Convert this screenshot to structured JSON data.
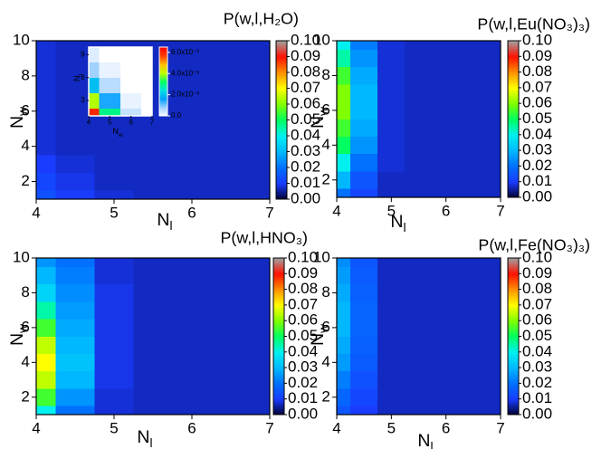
{
  "chart_data": [
    {
      "type": "heatmap",
      "title": "P(w,l,H₂O)",
      "xlabel": [
        "N",
        "l"
      ],
      "ylabel": [
        "N",
        "w"
      ],
      "x": [
        4,
        4.5,
        5,
        5.5,
        6,
        6.5,
        7
      ],
      "y": [
        1,
        2,
        3,
        4,
        5,
        6,
        7,
        8,
        9,
        10
      ],
      "z": [
        [
          0.014,
          0.01,
          0.008,
          0.007,
          0.007,
          0.007,
          0.007
        ],
        [
          0.012,
          0.009,
          0.007,
          0.007,
          0.007,
          0.007,
          0.007
        ],
        [
          0.01,
          0.008,
          0.007,
          0.007,
          0.007,
          0.007,
          0.007
        ],
        [
          0.008,
          0.007,
          0.007,
          0.007,
          0.007,
          0.007,
          0.007
        ],
        [
          0.008,
          0.007,
          0.007,
          0.007,
          0.007,
          0.007,
          0.007
        ],
        [
          0.008,
          0.007,
          0.007,
          0.007,
          0.007,
          0.007,
          0.007
        ],
        [
          0.008,
          0.007,
          0.007,
          0.007,
          0.007,
          0.007,
          0.007
        ],
        [
          0.008,
          0.007,
          0.007,
          0.007,
          0.007,
          0.007,
          0.007
        ],
        [
          0.008,
          0.007,
          0.007,
          0.007,
          0.007,
          0.007,
          0.007
        ],
        [
          0.008,
          0.007,
          0.007,
          0.007,
          0.007,
          0.007,
          0.007
        ]
      ],
      "xlim": [
        4,
        7
      ],
      "ylim": [
        1,
        10
      ],
      "xticks": [
        4,
        5,
        6,
        7
      ],
      "yticks": [
        2,
        4,
        6,
        8,
        10
      ],
      "clim": [
        0,
        0.1
      ],
      "cticks": [
        {
          "value": 0,
          "label": "0.00"
        },
        {
          "value": 0.01,
          "label": "0.01"
        },
        {
          "value": 0.02,
          "label": "0.02"
        },
        {
          "value": 0.03,
          "label": "0.03"
        },
        {
          "value": 0.04,
          "label": "0.04"
        },
        {
          "value": 0.05,
          "label": "0.05"
        },
        {
          "value": 0.06,
          "label": "0.06"
        },
        {
          "value": 0.07,
          "label": "0.07"
        },
        {
          "value": 0.08,
          "label": "0.08"
        },
        {
          "value": 0.09,
          "label": "0.09"
        },
        {
          "value": 0.1,
          "label": "0.10"
        }
      ],
      "colormap": [
        "#000030",
        "#1a3cff",
        "#0070ff",
        "#00b8ff",
        "#00f0f0",
        "#00ff60",
        "#80ff00",
        "#ffff00",
        "#ff9000",
        "#ff1000",
        "#a0a0a0"
      ],
      "inset": {
        "type": "heatmap",
        "xlabel": [
          "N",
          "w"
        ],
        "ylabel": [
          "N",
          "l"
        ],
        "x": [
          4,
          5,
          6,
          7
        ],
        "y": [
          1,
          3,
          5,
          7,
          9
        ],
        "z": [
          [
            0.006,
            0.003,
            0.0005,
            0
          ],
          [
            0.004,
            0.0015,
            0.0002,
            0
          ],
          [
            0.002,
            0.0006,
            0,
            0
          ],
          [
            0.0008,
            0.0002,
            0,
            0
          ],
          [
            0.0003,
            0,
            0,
            0
          ]
        ],
        "xlim": [
          4,
          7
        ],
        "ylim": [
          1,
          10
        ],
        "xticks": [
          4,
          5,
          6,
          7
        ],
        "yticks": [
          3,
          6,
          9
        ],
        "clim": [
          0,
          0.0065
        ],
        "cticks": [
          {
            "value": 0,
            "label": "0.0"
          },
          {
            "value": 0.002,
            "label": "2.0x10⁻³"
          },
          {
            "value": 0.004,
            "label": "4.0x10⁻³"
          },
          {
            "value": 0.006,
            "label": "6.0x10⁻³"
          }
        ],
        "colormap": [
          "#ffffff",
          "#a0d0ff",
          "#00a0ff",
          "#00e0e0",
          "#00ff60",
          "#c0ff00",
          "#ffc000",
          "#ff4000",
          "#ff0000"
        ]
      }
    },
    {
      "type": "heatmap",
      "title": "P(w,l,Eu(NO₃)₃)",
      "xlabel": [
        "N",
        "l"
      ],
      "ylabel": [
        "N",
        "w"
      ],
      "x": [
        4,
        4.5,
        5,
        5.5,
        6,
        6.5,
        7
      ],
      "y": [
        1,
        2,
        3,
        4,
        5,
        6,
        7,
        8,
        9,
        10
      ],
      "z": [
        [
          0.02,
          0.012,
          0.007,
          0.007,
          0.007,
          0.007,
          0.007
        ],
        [
          0.03,
          0.015,
          0.007,
          0.007,
          0.007,
          0.007,
          0.007
        ],
        [
          0.04,
          0.02,
          0.008,
          0.007,
          0.007,
          0.007,
          0.007
        ],
        [
          0.05,
          0.025,
          0.008,
          0.007,
          0.007,
          0.007,
          0.007
        ],
        [
          0.055,
          0.028,
          0.008,
          0.007,
          0.007,
          0.007,
          0.007
        ],
        [
          0.06,
          0.03,
          0.008,
          0.007,
          0.007,
          0.007,
          0.007
        ],
        [
          0.06,
          0.03,
          0.008,
          0.007,
          0.007,
          0.007,
          0.007
        ],
        [
          0.055,
          0.028,
          0.008,
          0.007,
          0.007,
          0.007,
          0.007
        ],
        [
          0.045,
          0.025,
          0.008,
          0.007,
          0.007,
          0.007,
          0.007
        ],
        [
          0.04,
          0.022,
          0.008,
          0.007,
          0.007,
          0.007,
          0.007
        ]
      ],
      "xlim": [
        4,
        7
      ],
      "ylim": [
        1,
        10
      ],
      "xticks": [
        4,
        5,
        6,
        7
      ],
      "yticks": [
        2,
        4,
        6,
        8,
        10
      ],
      "clim": [
        0,
        0.1
      ],
      "cticks": [
        {
          "value": 0,
          "label": "0.00"
        },
        {
          "value": 0.01,
          "label": "0.01"
        },
        {
          "value": 0.02,
          "label": "0.02"
        },
        {
          "value": 0.03,
          "label": "0.03"
        },
        {
          "value": 0.04,
          "label": "0.04"
        },
        {
          "value": 0.05,
          "label": "0.05"
        },
        {
          "value": 0.06,
          "label": "0.06"
        },
        {
          "value": 0.07,
          "label": "0.07"
        },
        {
          "value": 0.08,
          "label": "0.08"
        },
        {
          "value": 0.09,
          "label": "0.09"
        },
        {
          "value": 0.1,
          "label": "0.10"
        }
      ],
      "colormap": [
        "#000030",
        "#1a3cff",
        "#0070ff",
        "#00b8ff",
        "#00f0f0",
        "#00ff60",
        "#80ff00",
        "#ffff00",
        "#ff9000",
        "#ff1000",
        "#a0a0a0"
      ]
    },
    {
      "type": "heatmap",
      "title": "P(w,l,HNO₃)",
      "xlabel": [
        "N",
        "l"
      ],
      "ylabel": [
        "N",
        "w"
      ],
      "x": [
        4,
        4.5,
        5,
        5.5,
        6,
        6.5,
        7
      ],
      "y": [
        1,
        2,
        3,
        4,
        5,
        6,
        7,
        8,
        9,
        10
      ],
      "z": [
        [
          0.04,
          0.02,
          0.008,
          0.007,
          0.007,
          0.007,
          0.007
        ],
        [
          0.055,
          0.025,
          0.008,
          0.007,
          0.007,
          0.007,
          0.007
        ],
        [
          0.065,
          0.03,
          0.009,
          0.007,
          0.007,
          0.007,
          0.007
        ],
        [
          0.07,
          0.032,
          0.009,
          0.007,
          0.007,
          0.007,
          0.007
        ],
        [
          0.065,
          0.03,
          0.009,
          0.007,
          0.007,
          0.007,
          0.007
        ],
        [
          0.055,
          0.028,
          0.009,
          0.007,
          0.007,
          0.007,
          0.007
        ],
        [
          0.045,
          0.026,
          0.009,
          0.007,
          0.007,
          0.007,
          0.007
        ],
        [
          0.035,
          0.024,
          0.009,
          0.007,
          0.007,
          0.007,
          0.007
        ],
        [
          0.03,
          0.022,
          0.008,
          0.007,
          0.007,
          0.007,
          0.007
        ],
        [
          0.025,
          0.02,
          0.008,
          0.007,
          0.007,
          0.007,
          0.007
        ]
      ],
      "xlim": [
        4,
        7
      ],
      "ylim": [
        1,
        10
      ],
      "xticks": [
        4,
        5,
        6,
        7
      ],
      "yticks": [
        2,
        4,
        6,
        8,
        10
      ],
      "clim": [
        0,
        0.1
      ],
      "cticks": [
        {
          "value": 0,
          "label": "0.00"
        },
        {
          "value": 0.01,
          "label": "0.01"
        },
        {
          "value": 0.02,
          "label": "0.02"
        },
        {
          "value": 0.03,
          "label": "0.03"
        },
        {
          "value": 0.04,
          "label": "0.04"
        },
        {
          "value": 0.05,
          "label": "0.05"
        },
        {
          "value": 0.06,
          "label": "0.06"
        },
        {
          "value": 0.07,
          "label": "0.07"
        },
        {
          "value": 0.08,
          "label": "0.08"
        },
        {
          "value": 0.09,
          "label": "0.09"
        },
        {
          "value": 0.1,
          "label": "0.10"
        }
      ],
      "colormap": [
        "#000030",
        "#1a3cff",
        "#0070ff",
        "#00b8ff",
        "#00f0f0",
        "#00ff60",
        "#80ff00",
        "#ffff00",
        "#ff9000",
        "#ff1000",
        "#a0a0a0"
      ]
    },
    {
      "type": "heatmap",
      "title": "P(w,l,Fe(NO₃)₃)",
      "xlabel": [
        "N",
        "l"
      ],
      "ylabel": [
        "N",
        "w"
      ],
      "x": [
        4,
        4.5,
        5,
        5.5,
        6,
        6.5,
        7
      ],
      "y": [
        1,
        2,
        3,
        4,
        5,
        6,
        7,
        8,
        9,
        10
      ],
      "z": [
        [
          0.015,
          0.01,
          0.007,
          0.007,
          0.007,
          0.007,
          0.007
        ],
        [
          0.018,
          0.012,
          0.007,
          0.007,
          0.007,
          0.007,
          0.007
        ],
        [
          0.022,
          0.014,
          0.007,
          0.007,
          0.007,
          0.007,
          0.007
        ],
        [
          0.026,
          0.016,
          0.007,
          0.007,
          0.007,
          0.007,
          0.007
        ],
        [
          0.028,
          0.017,
          0.007,
          0.007,
          0.007,
          0.007,
          0.007
        ],
        [
          0.03,
          0.018,
          0.007,
          0.007,
          0.007,
          0.007,
          0.007
        ],
        [
          0.03,
          0.018,
          0.007,
          0.007,
          0.007,
          0.007,
          0.007
        ],
        [
          0.028,
          0.017,
          0.007,
          0.007,
          0.007,
          0.007,
          0.007
        ],
        [
          0.026,
          0.016,
          0.007,
          0.007,
          0.007,
          0.007,
          0.007
        ],
        [
          0.024,
          0.015,
          0.007,
          0.007,
          0.007,
          0.007,
          0.007
        ]
      ],
      "xlim": [
        4,
        7
      ],
      "ylim": [
        1,
        10
      ],
      "xticks": [
        4,
        5,
        6,
        7
      ],
      "yticks": [
        2,
        4,
        6,
        8,
        10
      ],
      "clim": [
        0,
        0.1
      ],
      "cticks": [
        {
          "value": 0,
          "label": "0.00"
        },
        {
          "value": 0.01,
          "label": "0.01"
        },
        {
          "value": 0.02,
          "label": "0.02"
        },
        {
          "value": 0.03,
          "label": "0.03"
        },
        {
          "value": 0.04,
          "label": "0.04"
        },
        {
          "value": 0.05,
          "label": "0.05"
        },
        {
          "value": 0.06,
          "label": "0.06"
        },
        {
          "value": 0.07,
          "label": "0.07"
        },
        {
          "value": 0.08,
          "label": "0.08"
        },
        {
          "value": 0.09,
          "label": "0.09"
        },
        {
          "value": 0.1,
          "label": "0.10"
        }
      ],
      "colormap": [
        "#000030",
        "#1a3cff",
        "#0070ff",
        "#00b8ff",
        "#00f0f0",
        "#00ff60",
        "#80ff00",
        "#ffff00",
        "#ff9000",
        "#ff1000",
        "#a0a0a0"
      ]
    }
  ]
}
